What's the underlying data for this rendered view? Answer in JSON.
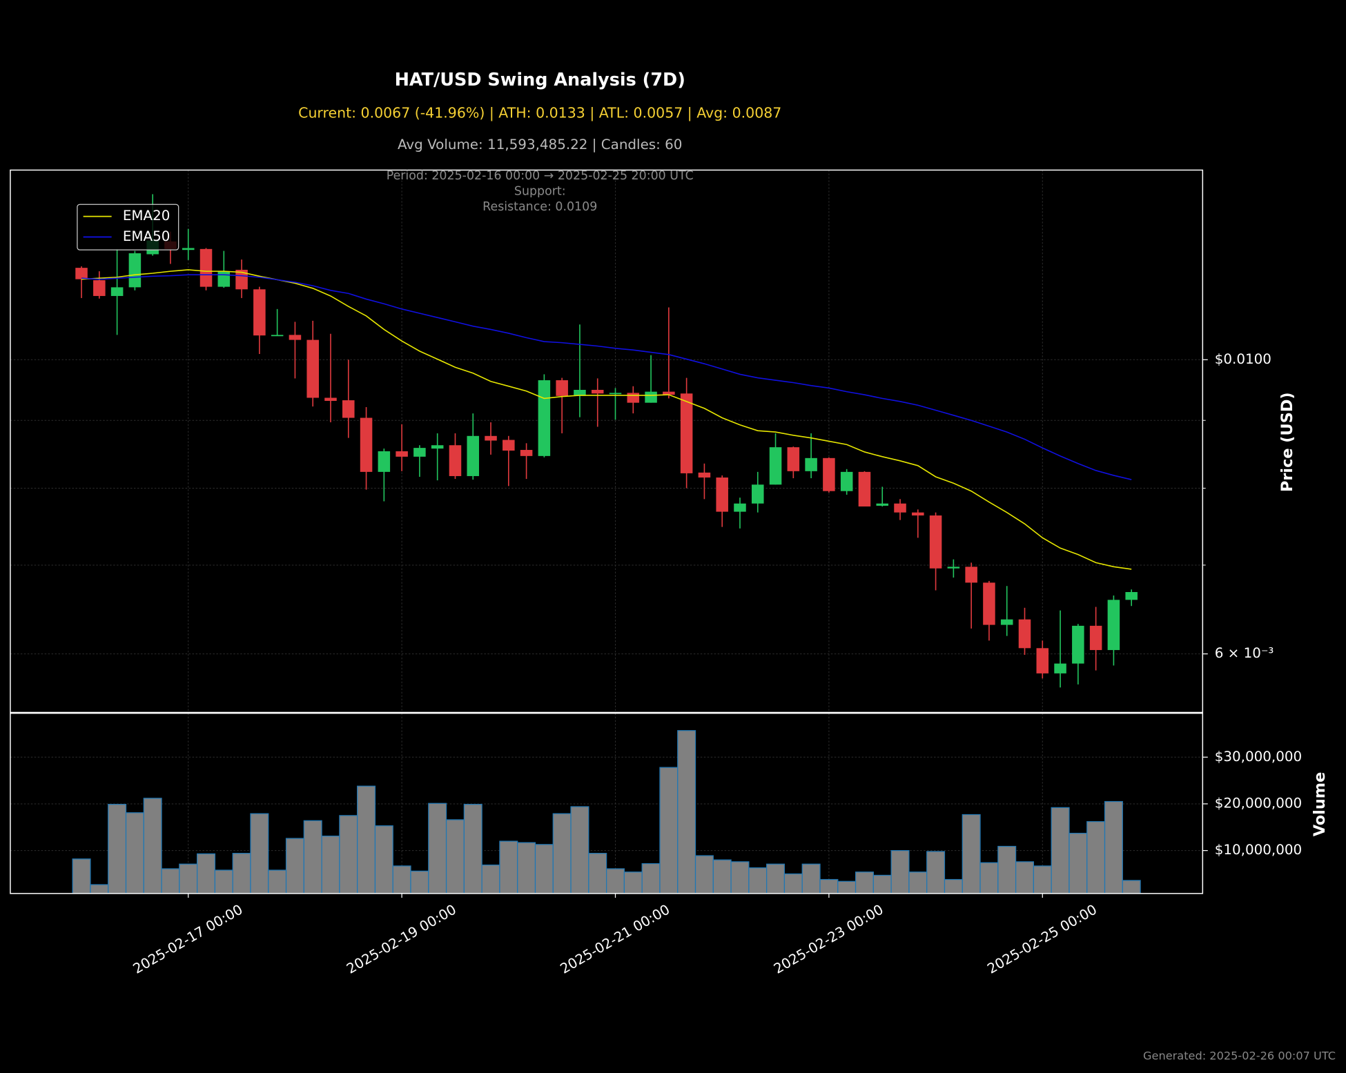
{
  "chart_data": {
    "type": "candlestick",
    "title": "HAT/USD Swing Analysis (7D)",
    "subtitle": "Current: 0.0067 (-41.96%) | ATH: 0.0133 | ATL: 0.0057 | Avg: 0.0087",
    "volume_summary": "Avg Volume: 11,593,485.22 | Candles: 60",
    "annotations": [
      "Period: 2025-02-16 00:00 → 2025-02-25 20:00 UTC",
      "Support:",
      "Resistance: 0.0109"
    ],
    "ylabel": "Price (USD)",
    "footer": "Generated: 2025-02-26 00:07 UTC",
    "yscale": "log",
    "grid": true,
    "legend": "upper left",
    "up_color": "#22c55e",
    "down_color": "#e03a3e",
    "x": [
      "2025-02-16 00:00",
      "2025-02-16 04:00",
      "2025-02-16 08:00",
      "2025-02-16 12:00",
      "2025-02-16 16:00",
      "2025-02-16 20:00",
      "2025-02-17 00:00",
      "2025-02-17 04:00",
      "2025-02-17 08:00",
      "2025-02-17 12:00",
      "2025-02-17 16:00",
      "2025-02-17 20:00",
      "2025-02-18 00:00",
      "2025-02-18 04:00",
      "2025-02-18 08:00",
      "2025-02-18 12:00",
      "2025-02-18 16:00",
      "2025-02-18 20:00",
      "2025-02-19 00:00",
      "2025-02-19 04:00",
      "2025-02-19 08:00",
      "2025-02-19 12:00",
      "2025-02-19 16:00",
      "2025-02-19 20:00",
      "2025-02-20 00:00",
      "2025-02-20 04:00",
      "2025-02-20 08:00",
      "2025-02-20 12:00",
      "2025-02-20 16:00",
      "2025-02-20 20:00",
      "2025-02-21 00:00",
      "2025-02-21 04:00",
      "2025-02-21 08:00",
      "2025-02-21 12:00",
      "2025-02-21 16:00",
      "2025-02-21 20:00",
      "2025-02-22 00:00",
      "2025-02-22 04:00",
      "2025-02-22 08:00",
      "2025-02-22 12:00",
      "2025-02-22 16:00",
      "2025-02-22 20:00",
      "2025-02-23 00:00",
      "2025-02-23 04:00",
      "2025-02-23 08:00",
      "2025-02-23 12:00",
      "2025-02-23 16:00",
      "2025-02-23 20:00",
      "2025-02-24 00:00",
      "2025-02-24 04:00",
      "2025-02-24 08:00",
      "2025-02-24 12:00",
      "2025-02-24 16:00",
      "2025-02-24 20:00",
      "2025-02-25 00:00",
      "2025-02-25 04:00",
      "2025-02-25 08:00",
      "2025-02-25 12:00",
      "2025-02-25 16:00",
      "2025-02-25 20:00"
    ],
    "xlim": [
      "2025-02-15 08:00",
      "2025-02-26 12:00"
    ],
    "xticks": [
      "2025-02-17 00:00",
      "2025-02-19 00:00",
      "2025-02-21 00:00",
      "2025-02-23 00:00",
      "2025-02-25 00:00"
    ],
    "ylim": [
      0.00542,
      0.0139
    ],
    "yticks": [
      {
        "value": 0.01,
        "label": "$0.0100"
      },
      {
        "value": 0.006,
        "label": "6 × 10⁻³"
      }
    ],
    "yticks_minor": [
      0.007,
      0.008,
      0.009
    ],
    "open": [
      0.01173,
      0.01148,
      0.01117,
      0.01134,
      0.01201,
      0.01228,
      0.0121,
      0.01212,
      0.01135,
      0.01169,
      0.0113,
      0.01043,
      0.01044,
      0.01035,
      0.00936,
      0.00932,
      0.00904,
      0.00823,
      0.00853,
      0.00845,
      0.00857,
      0.00862,
      0.00817,
      0.00876,
      0.0087,
      0.00855,
      0.00846,
      0.00965,
      0.00939,
      0.00949,
      0.00943,
      0.00944,
      0.00928,
      0.00946,
      0.00943,
      0.00822,
      0.00815,
      0.00768,
      0.00779,
      0.00805,
      0.00859,
      0.00824,
      0.00843,
      0.00796,
      0.00823,
      0.00776,
      0.00779,
      0.00767,
      0.00763,
      0.00696,
      0.00698,
      0.00679,
      0.00631,
      0.00637,
      0.00606,
      0.0058,
      0.0059,
      0.0063,
      0.00604,
      0.00659
    ],
    "high": [
      0.01176,
      0.01166,
      0.01212,
      0.01208,
      0.01333,
      0.01249,
      0.01255,
      0.01214,
      0.01208,
      0.0119,
      0.01135,
      0.01092,
      0.01068,
      0.0107,
      0.01046,
      0.01,
      0.00921,
      0.00857,
      0.00894,
      0.00862,
      0.0088,
      0.0088,
      0.00911,
      0.00897,
      0.00876,
      0.00865,
      0.00975,
      0.00969,
      0.01063,
      0.00968,
      0.00952,
      0.00955,
      0.01008,
      0.01095,
      0.00969,
      0.00835,
      0.00818,
      0.00787,
      0.00823,
      0.0088,
      0.0086,
      0.0088,
      0.00844,
      0.00827,
      0.00824,
      0.00802,
      0.00785,
      0.00771,
      0.00767,
      0.00707,
      0.00703,
      0.00681,
      0.00675,
      0.0065,
      0.00614,
      0.00647,
      0.00632,
      0.00651,
      0.00664,
      0.00671
    ],
    "low": [
      0.01113,
      0.01112,
      0.01044,
      0.01128,
      0.01198,
      0.01181,
      0.01189,
      0.01128,
      0.01133,
      0.01113,
      0.0101,
      0.01042,
      0.00968,
      0.00922,
      0.00897,
      0.00873,
      0.00798,
      0.00782,
      0.00824,
      0.00816,
      0.00811,
      0.00813,
      0.00812,
      0.00848,
      0.00803,
      0.00813,
      0.00844,
      0.0088,
      0.00905,
      0.0089,
      0.00901,
      0.00911,
      0.00928,
      0.00935,
      0.008,
      0.00785,
      0.00748,
      0.00746,
      0.00767,
      0.00805,
      0.00814,
      0.00814,
      0.00794,
      0.00791,
      0.00775,
      0.00775,
      0.00757,
      0.00734,
      0.0067,
      0.00685,
      0.00627,
      0.00614,
      0.00619,
      0.00599,
      0.00575,
      0.00566,
      0.00569,
      0.00583,
      0.00588,
      0.00652
    ],
    "close": [
      0.0115,
      0.01117,
      0.01134,
      0.01203,
      0.0123,
      0.01212,
      0.01214,
      0.01135,
      0.01166,
      0.0113,
      0.01043,
      0.01044,
      0.01035,
      0.00936,
      0.00931,
      0.00904,
      0.00823,
      0.00853,
      0.00845,
      0.00858,
      0.00862,
      0.00817,
      0.00876,
      0.00869,
      0.00854,
      0.00846,
      0.00965,
      0.00939,
      0.00949,
      0.00943,
      0.00944,
      0.00928,
      0.00946,
      0.00941,
      0.00821,
      0.00815,
      0.00768,
      0.00779,
      0.00805,
      0.00859,
      0.00824,
      0.00843,
      0.00796,
      0.00823,
      0.00775,
      0.00779,
      0.00767,
      0.00763,
      0.00696,
      0.00698,
      0.00679,
      0.00631,
      0.00637,
      0.00606,
      0.0058,
      0.0059,
      0.0063,
      0.00604,
      0.00659,
      0.00668
    ],
    "series": [
      {
        "name": "EMA20",
        "color": "#e6e600",
        "values": [
          0.0115,
          0.01152,
          0.01154,
          0.01159,
          0.01162,
          0.01166,
          0.01169,
          0.01166,
          0.01166,
          0.01164,
          0.01156,
          0.01149,
          0.01142,
          0.01132,
          0.01117,
          0.01097,
          0.01079,
          0.01054,
          0.01033,
          0.01015,
          0.01001,
          0.00987,
          0.00977,
          0.00963,
          0.00955,
          0.00947,
          0.00935,
          0.00938,
          0.0094,
          0.0094,
          0.0094,
          0.0094,
          0.0094,
          0.00941,
          0.0093,
          0.00919,
          0.00904,
          0.00893,
          0.00884,
          0.00882,
          0.00877,
          0.00873,
          0.00868,
          0.00863,
          0.00852,
          0.00845,
          0.00839,
          0.00832,
          0.00816,
          0.00807,
          0.00796,
          0.00781,
          0.00767,
          0.00752,
          0.00734,
          0.00721,
          0.00713,
          0.00703,
          0.00698,
          0.00695
        ]
      },
      {
        "name": "EMA50",
        "color": "#1010e0",
        "values": [
          0.01152,
          0.0115,
          0.01152,
          0.01154,
          0.01156,
          0.01157,
          0.01159,
          0.01159,
          0.01159,
          0.01157,
          0.01154,
          0.01149,
          0.01144,
          0.01137,
          0.01128,
          0.01122,
          0.01111,
          0.01102,
          0.01092,
          0.01084,
          0.01076,
          0.01068,
          0.0106,
          0.01054,
          0.01047,
          0.01039,
          0.01032,
          0.0103,
          0.01027,
          0.01024,
          0.0102,
          0.01017,
          0.01013,
          0.01009,
          0.01001,
          0.00993,
          0.00984,
          0.00975,
          0.00969,
          0.00965,
          0.00961,
          0.00956,
          0.00952,
          0.00946,
          0.00941,
          0.00935,
          0.0093,
          0.00924,
          0.00916,
          0.00908,
          0.009,
          0.00891,
          0.00882,
          0.00871,
          0.00858,
          0.00846,
          0.00835,
          0.00825,
          0.00818,
          0.00812
        ]
      }
    ],
    "volume": {
      "ylabel": "Volume",
      "color": "#808080",
      "edge_color": "#1f77b4",
      "ylim": [
        800000,
        39400000
      ],
      "yticks": [
        {
          "value": 10000000,
          "label": "$10,000,000"
        },
        {
          "value": 20000000,
          "label": "$20,000,000"
        },
        {
          "value": 30000000,
          "label": "$30,000,000"
        }
      ],
      "values": [
        8200000,
        2700000,
        19900000,
        18100000,
        21200000,
        6100000,
        7100000,
        9300000,
        5800000,
        9400000,
        17900000,
        5800000,
        12600000,
        16400000,
        13100000,
        17500000,
        23800000,
        15300000,
        6700000,
        5600000,
        20100000,
        16600000,
        19900000,
        6900000,
        12000000,
        11700000,
        11300000,
        17900000,
        19400000,
        9400000,
        6100000,
        5400000,
        7200000,
        27800000,
        35700000,
        8900000,
        8000000,
        7600000,
        6300000,
        7100000,
        5000000,
        7100000,
        3800000,
        3400000,
        5400000,
        4700000,
        10000000,
        5400000,
        9800000,
        3800000,
        17700000,
        7400000,
        10900000,
        7600000,
        6700000,
        19200000,
        13700000,
        16200000,
        20500000,
        3600000
      ]
    }
  }
}
